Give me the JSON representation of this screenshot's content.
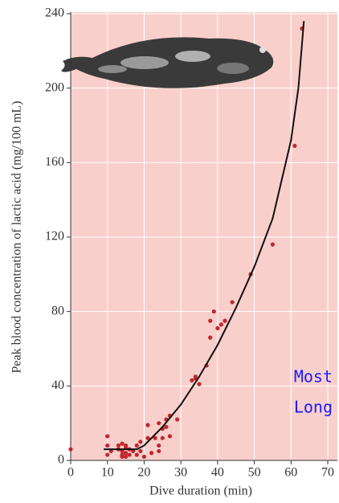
{
  "chart_data": {
    "type": "scatter",
    "xlabel": "Dive duration (min)",
    "ylabel": "Peak blood concentration of lactic acid (mg/100 mL)",
    "annotation": [
      "Most",
      "Long"
    ],
    "xlim": [
      0,
      70
    ],
    "xticks": [
      0,
      10,
      20,
      30,
      40,
      50,
      60,
      70
    ],
    "ylim": [
      0,
      240
    ],
    "yticks": [
      0,
      40,
      80,
      120,
      160,
      200,
      240
    ],
    "grid": true,
    "series": [
      {
        "style": "points",
        "color": "#c0282d",
        "x": [
          0,
          10,
          10,
          10,
          11,
          13,
          13,
          14,
          14,
          14,
          14,
          15,
          15,
          15,
          15,
          16,
          16,
          17,
          18,
          18,
          19,
          19,
          20,
          21,
          21,
          22,
          23,
          24,
          24,
          24,
          25,
          25,
          26,
          26,
          27,
          27,
          29,
          33,
          34,
          34,
          35,
          37,
          38,
          38,
          39,
          40,
          41,
          42,
          44,
          49,
          55,
          61,
          63
        ],
        "values": [
          6,
          13,
          8,
          3,
          5,
          8,
          6,
          9,
          3,
          2,
          5,
          8,
          4,
          2,
          7,
          3,
          6,
          5,
          8,
          3,
          5,
          10,
          2,
          12,
          19,
          4,
          12,
          5,
          8,
          20,
          12,
          17,
          22,
          18,
          13,
          24,
          22,
          43,
          44,
          45,
          41,
          51,
          75,
          66,
          80,
          71,
          73,
          75,
          85,
          100,
          116,
          169,
          232
        ]
      },
      {
        "style": "line",
        "color": "#111111",
        "x": [
          9,
          15,
          18,
          20,
          25,
          30,
          35,
          40,
          45,
          50,
          55,
          60,
          62,
          63.5
        ],
        "values": [
          6,
          6,
          6,
          8,
          18,
          30,
          45,
          62,
          82,
          104,
          130,
          172,
          200,
          236
        ]
      }
    ]
  }
}
